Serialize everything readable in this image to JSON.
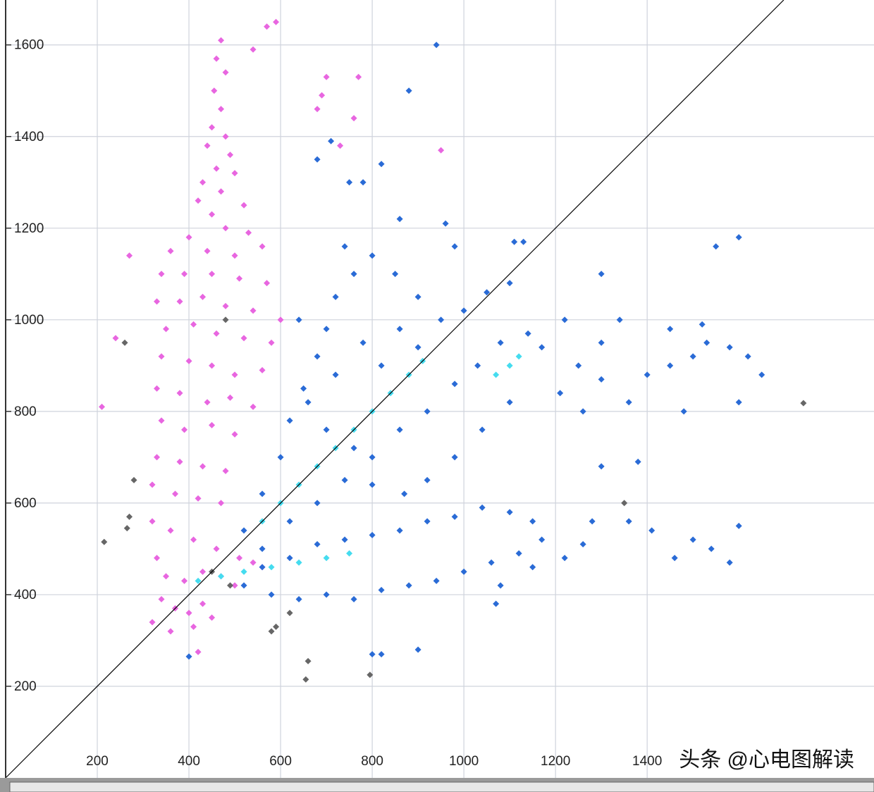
{
  "chart_data": {
    "type": "scatter",
    "xlim": [
      0,
      1895
    ],
    "ylim": [
      0,
      1698
    ],
    "xticks": [
      200,
      400,
      600,
      800,
      1000,
      1200,
      1400
    ],
    "yticks": [
      200,
      400,
      600,
      800,
      1000,
      1200,
      1400,
      1600
    ],
    "grid": true,
    "annotation": "头条 @心电图解读",
    "series": [
      {
        "color": "#e866e0",
        "x": [
          470,
          460,
          480,
          455,
          470,
          450,
          480,
          440,
          490,
          460,
          430,
          500,
          470,
          420,
          520,
          450,
          480,
          400,
          530,
          360,
          440,
          500,
          560,
          340,
          390,
          450,
          510,
          570,
          330,
          380,
          430,
          480,
          540,
          600,
          350,
          410,
          460,
          520,
          580,
          340,
          400,
          450,
          500,
          560,
          330,
          380,
          440,
          490,
          540,
          340,
          390,
          450,
          500,
          330,
          380,
          430,
          480,
          320,
          370,
          420,
          470,
          320,
          360,
          410,
          460,
          510,
          540,
          560,
          330,
          350,
          390,
          430,
          470,
          500,
          340,
          370,
          400,
          430,
          320,
          360,
          410,
          450,
          240,
          210,
          270,
          590,
          570,
          540,
          700,
          770,
          690,
          760,
          730,
          950,
          680,
          420
        ],
        "y": [
          1610,
          1570,
          1540,
          1500,
          1460,
          1420,
          1400,
          1380,
          1360,
          1330,
          1300,
          1320,
          1280,
          1260,
          1250,
          1230,
          1200,
          1180,
          1190,
          1150,
          1150,
          1140,
          1160,
          1100,
          1100,
          1100,
          1090,
          1080,
          1040,
          1040,
          1050,
          1030,
          1020,
          1000,
          980,
          990,
          970,
          960,
          950,
          920,
          910,
          900,
          880,
          890,
          850,
          840,
          820,
          830,
          810,
          780,
          760,
          770,
          750,
          700,
          690,
          680,
          670,
          640,
          620,
          610,
          600,
          560,
          540,
          520,
          500,
          480,
          470,
          460,
          480,
          440,
          430,
          450,
          440,
          420,
          390,
          370,
          360,
          380,
          340,
          320,
          330,
          350,
          960,
          810,
          1140,
          1650,
          1640,
          1590,
          1530,
          1530,
          1490,
          1440,
          1380,
          1370,
          1460,
          275
        ]
      },
      {
        "color": "#2a6bd6",
        "x": [
          520,
          560,
          600,
          620,
          650,
          680,
          700,
          720,
          760,
          740,
          800,
          850,
          900,
          950,
          1000,
          1050,
          1100,
          1130,
          1110,
          980,
          560,
          620,
          680,
          740,
          800,
          860,
          920,
          980,
          1030,
          1080,
          1140,
          1170,
          1100,
          1040,
          980,
          920,
          870,
          800,
          760,
          700,
          660,
          820,
          780,
          860,
          640,
          720,
          900,
          520,
          580,
          640,
          700,
          760,
          820,
          880,
          940,
          1000,
          1060,
          1120,
          1170,
          1150,
          1100,
          1040,
          980,
          920,
          860,
          800,
          740,
          680,
          620,
          560,
          1080,
          1150,
          1220,
          1260,
          1280,
          1210,
          1250,
          1300,
          1340,
          1300,
          1260,
          1360,
          1400,
          1450,
          1500,
          1530,
          1580,
          1620,
          1600,
          1480,
          1450,
          1520,
          1550,
          1600,
          1650,
          1540,
          1580,
          1460,
          1600,
          1410,
          1360,
          1300,
          1380,
          1500,
          940,
          880,
          710,
          680,
          820,
          750,
          780,
          860,
          960,
          400,
          800,
          820,
          900,
          1070,
          1300,
          1220
        ],
        "y": [
          540,
          620,
          700,
          780,
          850,
          920,
          980,
          1050,
          1100,
          1160,
          1140,
          1100,
          1050,
          1000,
          1020,
          1060,
          1080,
          1170,
          1170,
          1160,
          500,
          560,
          600,
          650,
          700,
          760,
          800,
          860,
          900,
          950,
          970,
          940,
          820,
          760,
          700,
          650,
          620,
          640,
          720,
          760,
          820,
          900,
          950,
          980,
          1000,
          880,
          940,
          420,
          400,
          390,
          400,
          390,
          410,
          420,
          430,
          450,
          470,
          490,
          520,
          560,
          580,
          590,
          570,
          560,
          540,
          530,
          520,
          510,
          480,
          460,
          420,
          460,
          480,
          510,
          560,
          840,
          900,
          950,
          1000,
          870,
          800,
          820,
          880,
          900,
          920,
          950,
          940,
          920,
          820,
          800,
          980,
          990,
          1160,
          1180,
          880,
          500,
          470,
          480,
          550,
          540,
          560,
          680,
          690,
          520,
          1600,
          1500,
          1390,
          1350,
          1340,
          1300,
          1300,
          1220,
          1210,
          265,
          270,
          270,
          280,
          380,
          1100,
          1000
        ]
      },
      {
        "color": "#45dcef",
        "x": [
          560,
          600,
          640,
          680,
          720,
          760,
          800,
          840,
          880,
          910,
          1070,
          1100,
          1120,
          420,
          470,
          520,
          580,
          640,
          700,
          750
        ],
        "y": [
          560,
          600,
          640,
          680,
          720,
          760,
          800,
          840,
          880,
          910,
          880,
          900,
          920,
          430,
          440,
          450,
          460,
          470,
          480,
          490
        ]
      },
      {
        "color": "#666666",
        "x": [
          260,
          280,
          270,
          265,
          215,
          1741,
          1350,
          660,
          655,
          795,
          590,
          580,
          620,
          490,
          450,
          480
        ],
        "y": [
          950,
          650,
          570,
          545,
          515,
          818,
          600,
          255,
          215,
          225,
          330,
          320,
          360,
          420,
          450,
          1000
        ]
      }
    ]
  }
}
